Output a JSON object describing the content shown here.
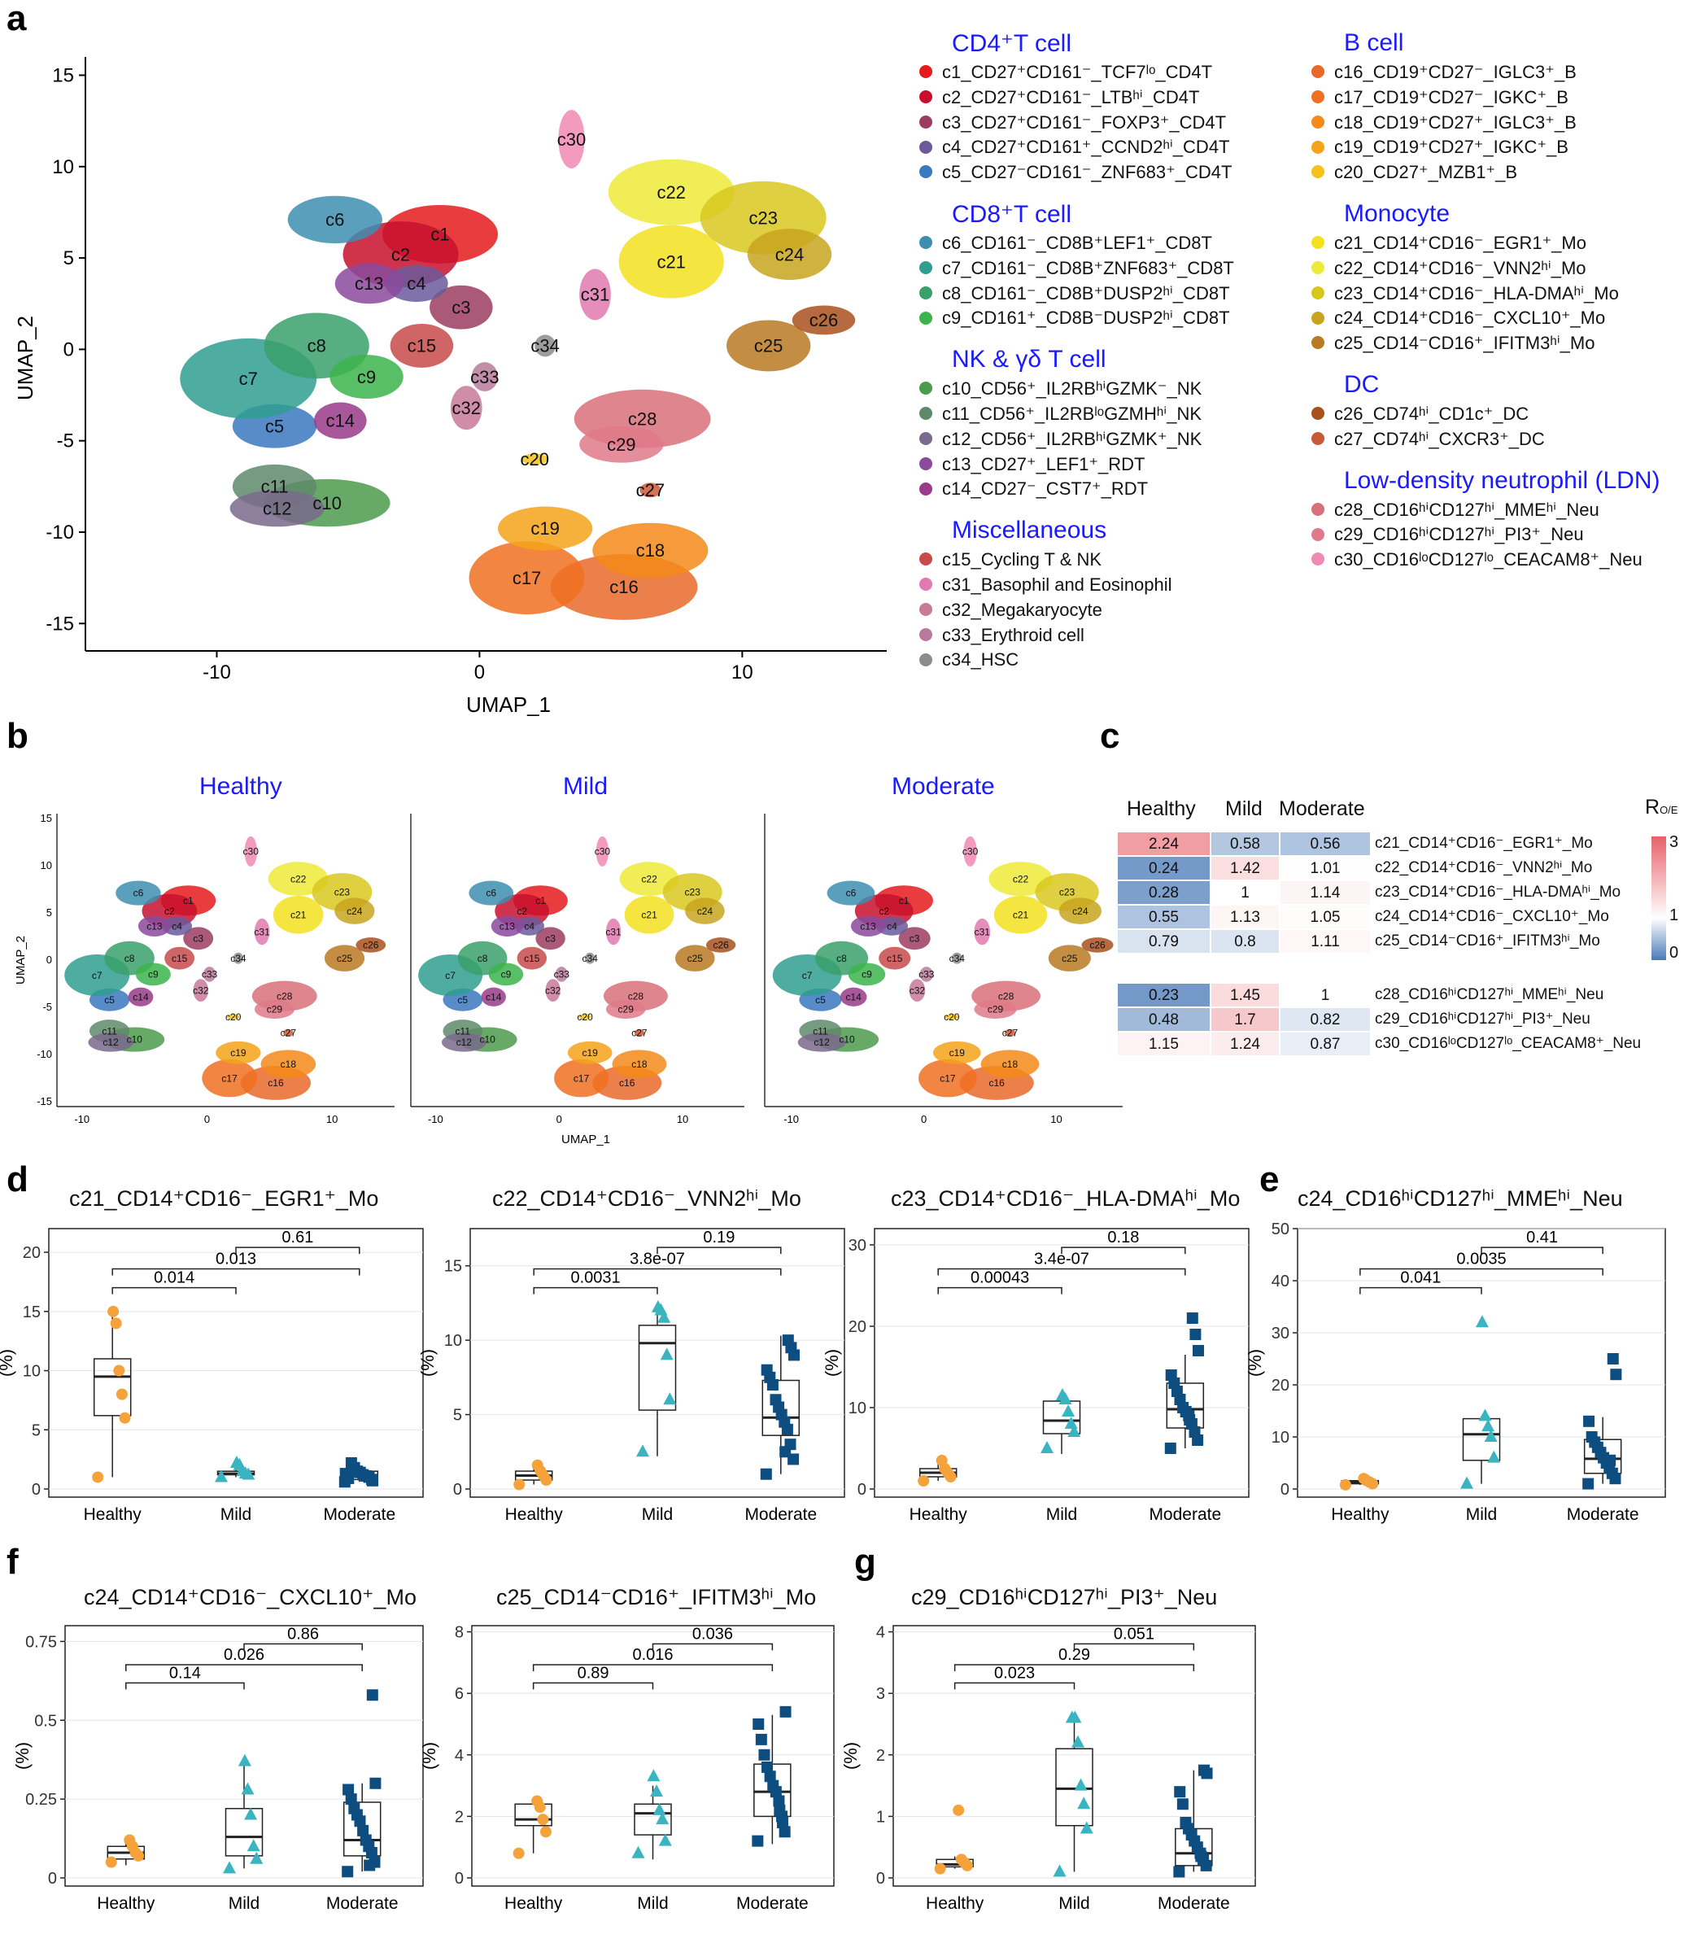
{
  "panels": {
    "a": "a",
    "b": "b",
    "c": "c",
    "d": "d",
    "e": "e",
    "f": "f",
    "g": "g"
  },
  "umap_a": {
    "xlabel": "UMAP_1",
    "ylabel": "UMAP_2",
    "xticks": [
      "-10",
      "0",
      "10"
    ],
    "yticks": [
      "15",
      "10",
      "5",
      "0",
      "-5",
      "-10",
      "-15"
    ]
  },
  "legend": {
    "groups": [
      {
        "title": "CD4⁺T cell",
        "items": [
          {
            "label": "c1_CD27⁺CD161⁻_TCF7ˡᵒ_CD4T",
            "color": "#e41a1c"
          },
          {
            "label": "c2_CD27⁺CD161⁻_LTBʰⁱ_CD4T",
            "color": "#c8102e"
          },
          {
            "label": "c3_CD27⁺CD161⁻_FOXP3⁺_CD4T",
            "color": "#9b3d5e"
          },
          {
            "label": "c4_CD27⁺CD161⁺_CCND2ʰⁱ_CD4T",
            "color": "#6a5a9c"
          },
          {
            "label": "c5_CD27⁻CD161⁻_ZNF683⁺_CD4T",
            "color": "#3a78c0"
          }
        ]
      },
      {
        "title": "CD8⁺T cell",
        "items": [
          {
            "label": "c6_CD161⁻_CD8B⁺LEF1⁺_CD8T",
            "color": "#3d8fb0"
          },
          {
            "label": "c7_CD161⁻_CD8B⁺ZNF683⁺_CD8T",
            "color": "#2f9e8f"
          },
          {
            "label": "c8_CD161⁻_CD8B⁺DUSP2ʰⁱ_CD8T",
            "color": "#3aa06a"
          },
          {
            "label": "c9_CD161⁺_CD8B⁻DUSP2ʰⁱ_CD8T",
            "color": "#3cb44b"
          }
        ]
      },
      {
        "title": "NK & γδ T cell",
        "items": [
          {
            "label": "c10_CD56⁺_IL2RBʰⁱGZMK⁻_NK",
            "color": "#4c9a4c"
          },
          {
            "label": "c11_CD56⁺_IL2RBˡᵒGZMHʰⁱ_NK",
            "color": "#5f8a6a"
          },
          {
            "label": "c12_CD56⁺_IL2RBʰⁱGZMK⁺_NK",
            "color": "#7a6a8c"
          },
          {
            "label": "c13_CD27⁺_LEF1⁺_RDT",
            "color": "#8b4a9c"
          },
          {
            "label": "c14_CD27⁻_CST7⁺_RDT",
            "color": "#9a3a8a"
          }
        ]
      },
      {
        "title": "Miscellaneous",
        "items": [
          {
            "label": "c15_Cycling T & NK",
            "color": "#c84a4a"
          },
          {
            "label": "c31_Basophil and Eosinophil",
            "color": "#e07ab0"
          },
          {
            "label": "c32_Megakaryocyte",
            "color": "#c87a96"
          },
          {
            "label": "c33_Erythroid cell",
            "color": "#b87a9a"
          },
          {
            "label": "c34_HSC",
            "color": "#8c8c8c"
          }
        ]
      },
      {
        "title": "B cell",
        "items": [
          {
            "label": "c16_CD19⁺CD27⁻_IGLC3⁺_B",
            "color": "#e86a2a"
          },
          {
            "label": "c17_CD19⁺CD27⁻_IGKC⁺_B",
            "color": "#f07020"
          },
          {
            "label": "c18_CD19⁺CD27⁺_IGLC3⁺_B",
            "color": "#f58a1a"
          },
          {
            "label": "c19_CD19⁺CD27⁺_IGKC⁺_B",
            "color": "#f5a31a"
          },
          {
            "label": "c20_CD27⁺_MZB1⁺_B",
            "color": "#f5c21a"
          }
        ]
      },
      {
        "title": "Monocyte",
        "items": [
          {
            "label": "c21_CD14⁺CD16⁻_EGR1⁺_Mo",
            "color": "#f2e11e"
          },
          {
            "label": "c22_CD14⁺CD16⁻_VNN2ʰⁱ_Mo",
            "color": "#eeea3a"
          },
          {
            "label": "c23_CD14⁺CD16⁻_HLA-DMAʰⁱ_Mo",
            "color": "#d8c81e"
          },
          {
            "label": "c24_CD14⁺CD16⁻_CXCL10⁺_Mo",
            "color": "#c8a41e"
          },
          {
            "label": "c25_CD14⁻CD16⁺_IFITM3ʰⁱ_Mo",
            "color": "#b87a22"
          }
        ]
      },
      {
        "title": "DC",
        "items": [
          {
            "label": "c26_CD74ʰⁱ_CD1c⁺_DC",
            "color": "#a8501e"
          },
          {
            "label": "c27_CD74ʰⁱ_CXCR3⁺_DC",
            "color": "#c85a3a"
          }
        ]
      },
      {
        "title": "Low-density neutrophil (LDN)",
        "items": [
          {
            "label": "c28_CD16ʰⁱCD127ʰⁱ_MMEʰⁱ_Neu",
            "color": "#d8707a"
          },
          {
            "label": "c29_CD16ʰⁱCD127ʰⁱ_PI3⁺_Neu",
            "color": "#e07a8a"
          },
          {
            "label": "c30_CD16ˡᵒCD127ˡᵒ_CEACAM8⁺_Neu",
            "color": "#f08ab4"
          }
        ]
      }
    ]
  },
  "umap_b": {
    "conditions": [
      "Healthy",
      "Mild",
      "Moderate"
    ],
    "xlabel": "UMAP_1",
    "ylabel": "UMAP_2",
    "xticks": [
      "-10",
      "0",
      "10"
    ],
    "yticks": [
      "15",
      "10",
      "5",
      "0",
      "-5",
      "-10",
      "-15"
    ]
  },
  "heatmap": {
    "columns": [
      "Healthy",
      "Mild",
      "Moderate"
    ],
    "legend_title": "R",
    "legend_sub": "O/E",
    "legend_ticks": [
      "3",
      "1",
      "0"
    ],
    "blocks": [
      [
        {
          "label": "c21_CD14⁺CD16⁻_EGR1⁺_Mo",
          "values": [
            2.24,
            0.58,
            0.56
          ]
        },
        {
          "label": "c22_CD14⁺CD16⁻_VNN2ʰⁱ_Mo",
          "values": [
            0.24,
            1.42,
            1.01
          ]
        },
        {
          "label": "c23_CD14⁺CD16⁻_HLA-DMAʰⁱ_Mo",
          "values": [
            0.28,
            1,
            1.14
          ]
        },
        {
          "label": "c24_CD14⁺CD16⁻_CXCL10⁺_Mo",
          "values": [
            0.55,
            1.13,
            1.05
          ]
        },
        {
          "label": "c25_CD14⁻CD16⁺_IFITM3ʰⁱ_Mo",
          "values": [
            0.79,
            0.8,
            1.11
          ]
        }
      ],
      [
        {
          "label": "c28_CD16ʰⁱCD127ʰⁱ_MMEʰⁱ_Neu",
          "values": [
            0.23,
            1.45,
            1
          ]
        },
        {
          "label": "c29_CD16ʰⁱCD127ʰⁱ_PI3⁺_Neu",
          "values": [
            0.48,
            1.7,
            0.82
          ]
        },
        {
          "label": "c30_CD16ˡᵒCD127ˡᵒ_CEACAM8⁺_Neu",
          "values": [
            1.15,
            1.24,
            0.87
          ]
        }
      ]
    ]
  },
  "chart_data": [
    {
      "type": "box",
      "panel": "d",
      "title": "c21_CD14⁺CD16⁻_EGR1⁺_Mo",
      "ylabel": "(%)",
      "categories": [
        "Healthy",
        "Mild",
        "Moderate"
      ],
      "ylim": [
        0,
        22
      ],
      "yticks": [
        0,
        5,
        10,
        15,
        20
      ],
      "points": [
        [
          1,
          6,
          8,
          10,
          14,
          15
        ],
        [
          1,
          1.2,
          1.3,
          1.5,
          2,
          2.2
        ],
        [
          0.6,
          0.8,
          1,
          1.1,
          1.2,
          1.4,
          1.5,
          1.8,
          2.2,
          0.9,
          1.3,
          0.7
        ]
      ],
      "box": [
        [
          1,
          6.2,
          9.5,
          11,
          15
        ],
        [
          1,
          1.2,
          1.3,
          1.5,
          2.2
        ],
        [
          0.6,
          0.8,
          1.1,
          1.5,
          2.2
        ]
      ],
      "comparisons": [
        {
          "a": 0,
          "b": 1,
          "p": "0.014"
        },
        {
          "a": 0,
          "b": 2,
          "p": "0.013"
        },
        {
          "a": 1,
          "b": 2,
          "p": "0.61"
        }
      ]
    },
    {
      "type": "box",
      "panel": "d",
      "title": "c22_CD14⁺CD16⁻_VNN2ʰⁱ_Mo",
      "ylabel": "(%)",
      "categories": [
        "Healthy",
        "Mild",
        "Moderate"
      ],
      "ylim": [
        0,
        17.5
      ],
      "yticks": [
        0,
        5,
        10,
        15
      ],
      "points": [
        [
          0.3,
          0.6,
          0.9,
          1.2,
          1.6
        ],
        [
          2.5,
          6,
          9,
          11.5,
          12,
          12.2
        ],
        [
          1,
          2,
          3,
          4,
          4.5,
          5,
          5.5,
          6,
          7,
          7.5,
          8,
          9,
          9.5,
          10,
          2.5
        ]
      ],
      "box": [
        [
          0.3,
          0.6,
          0.9,
          1.2,
          1.6
        ],
        [
          2.2,
          5.3,
          9.8,
          11,
          12.2
        ],
        [
          1,
          3.6,
          4.8,
          7.3,
          10.3
        ]
      ],
      "comparisons": [
        {
          "a": 0,
          "b": 1,
          "p": "0.0031"
        },
        {
          "a": 0,
          "b": 2,
          "p": "3.8e-07"
        },
        {
          "a": 1,
          "b": 2,
          "p": "0.19"
        }
      ]
    },
    {
      "type": "box",
      "panel": "d",
      "title": "c23_CD14⁺CD16⁻_HLA-DMAʰⁱ_Mo",
      "ylabel": "(%)",
      "categories": [
        "Healthy",
        "Mild",
        "Moderate"
      ],
      "ylim": [
        0,
        32
      ],
      "yticks": [
        0,
        10,
        20,
        30
      ],
      "points": [
        [
          1,
          1.5,
          2,
          2.5,
          3.5
        ],
        [
          5,
          7,
          8,
          9.5,
          11,
          11.5
        ],
        [
          5,
          6,
          7,
          8,
          9,
          9.5,
          10,
          11,
          12,
          13,
          14,
          17,
          19,
          21,
          8.5
        ]
      ],
      "box": [
        [
          1,
          1.5,
          2,
          2.5,
          3.5
        ],
        [
          4.3,
          6.8,
          8.4,
          10.8,
          11.5
        ],
        [
          5,
          7.5,
          9.8,
          13,
          16.5
        ]
      ],
      "comparisons": [
        {
          "a": 0,
          "b": 1,
          "p": "0.00043"
        },
        {
          "a": 0,
          "b": 2,
          "p": "3.4e-07"
        },
        {
          "a": 1,
          "b": 2,
          "p": "0.18"
        }
      ]
    },
    {
      "type": "box",
      "panel": "e",
      "title": "c24_CD16ʰⁱCD127ʰⁱ_MMEʰⁱ_Neu",
      "ylabel": "(%)",
      "categories": [
        "Healthy",
        "Mild",
        "Moderate"
      ],
      "ylim": [
        0,
        50
      ],
      "yticks": [
        0,
        10,
        20,
        30,
        40,
        50
      ],
      "points": [
        [
          0.8,
          1,
          1.3,
          1.6,
          2
        ],
        [
          1,
          6,
          10,
          12,
          14,
          32
        ],
        [
          1,
          2,
          3,
          4,
          5,
          6,
          7,
          8,
          9,
          10,
          13,
          22,
          25,
          5.5
        ]
      ],
      "box": [
        [
          0.8,
          1,
          1.3,
          1.6,
          2
        ],
        [
          1,
          5.5,
          10.5,
          13.5,
          14
        ],
        [
          1,
          3,
          5.8,
          9.5,
          13.8
        ]
      ],
      "comparisons": [
        {
          "a": 0,
          "b": 1,
          "p": "0.041"
        },
        {
          "a": 0,
          "b": 2,
          "p": "0.0035"
        },
        {
          "a": 1,
          "b": 2,
          "p": "0.41"
        }
      ]
    },
    {
      "type": "box",
      "panel": "f",
      "title": "c24_CD14⁺CD16⁻_CXCL10⁺_Mo",
      "ylabel": "(%)",
      "categories": [
        "Healthy",
        "Mild",
        "Moderate"
      ],
      "ylim": [
        0,
        0.8
      ],
      "yticks": [
        0,
        0.25,
        0.5,
        0.75
      ],
      "points": [
        [
          0.05,
          0.07,
          0.08,
          0.1,
          0.12
        ],
        [
          0.03,
          0.06,
          0.1,
          0.2,
          0.28,
          0.37
        ],
        [
          0.02,
          0.05,
          0.08,
          0.1,
          0.12,
          0.15,
          0.18,
          0.2,
          0.22,
          0.25,
          0.28,
          0.3,
          0.58,
          0.04
        ]
      ],
      "box": [
        [
          0.04,
          0.06,
          0.08,
          0.1,
          0.12
        ],
        [
          0.03,
          0.07,
          0.13,
          0.22,
          0.37
        ],
        [
          0.02,
          0.07,
          0.12,
          0.24,
          0.3
        ]
      ],
      "comparisons": [
        {
          "a": 0,
          "b": 1,
          "p": "0.14"
        },
        {
          "a": 0,
          "b": 2,
          "p": "0.026"
        },
        {
          "a": 1,
          "b": 2,
          "p": "0.86"
        }
      ]
    },
    {
      "type": "box",
      "panel": "f",
      "title": "c25_CD14⁻CD16⁺_IFITM3ʰⁱ_Mo",
      "ylabel": "(%)",
      "categories": [
        "Healthy",
        "Mild",
        "Moderate"
      ],
      "ylim": [
        0,
        8.2
      ],
      "yticks": [
        0,
        2,
        4,
        6,
        8
      ],
      "points": [
        [
          0.8,
          1.5,
          1.9,
          2.3,
          2.5
        ],
        [
          0.8,
          1.2,
          1.9,
          2.2,
          2.8,
          3.3
        ],
        [
          1.2,
          1.5,
          2,
          2.5,
          2.8,
          3,
          3.3,
          3.6,
          4,
          4.5,
          5,
          5.4,
          1.8,
          2.2
        ]
      ],
      "box": [
        [
          0.8,
          1.7,
          1.9,
          2.4,
          2.6
        ],
        [
          0.6,
          1.4,
          2.1,
          2.4,
          3
        ],
        [
          1.1,
          2,
          2.8,
          3.7,
          5.3
        ]
      ],
      "comparisons": [
        {
          "a": 0,
          "b": 1,
          "p": "0.89"
        },
        {
          "a": 0,
          "b": 2,
          "p": "0.016"
        },
        {
          "a": 1,
          "b": 2,
          "p": "0.036"
        }
      ]
    },
    {
      "type": "box",
      "panel": "g",
      "title": "c29_CD16ʰⁱCD127ʰⁱ_PI3⁺_Neu",
      "ylabel": "(%)",
      "categories": [
        "Healthy",
        "Mild",
        "Moderate"
      ],
      "ylim": [
        0,
        4.1
      ],
      "yticks": [
        0,
        1,
        2,
        3,
        4
      ],
      "points": [
        [
          0.15,
          0.2,
          0.25,
          0.3,
          1.1
        ],
        [
          0.1,
          0.8,
          1.2,
          1.5,
          2.2,
          2.6,
          2.6
        ],
        [
          0.1,
          0.2,
          0.3,
          0.4,
          0.5,
          0.6,
          0.7,
          0.8,
          0.9,
          1.2,
          1.4,
          1.7,
          1.75,
          0.35
        ]
      ],
      "box": [
        [
          0.15,
          0.18,
          0.22,
          0.3,
          0.35
        ],
        [
          0.1,
          0.85,
          1.45,
          2.1,
          2.6
        ],
        [
          0.1,
          0.2,
          0.4,
          0.8,
          1.75
        ]
      ],
      "comparisons": [
        {
          "a": 0,
          "b": 1,
          "p": "0.023"
        },
        {
          "a": 0,
          "b": 2,
          "p": "0.29"
        },
        {
          "a": 1,
          "b": 2,
          "p": "0.051"
        }
      ]
    }
  ],
  "colors": {
    "healthy": "#f5a23a",
    "mild": "#3bb4c1",
    "moderate": "#0d4d80"
  }
}
